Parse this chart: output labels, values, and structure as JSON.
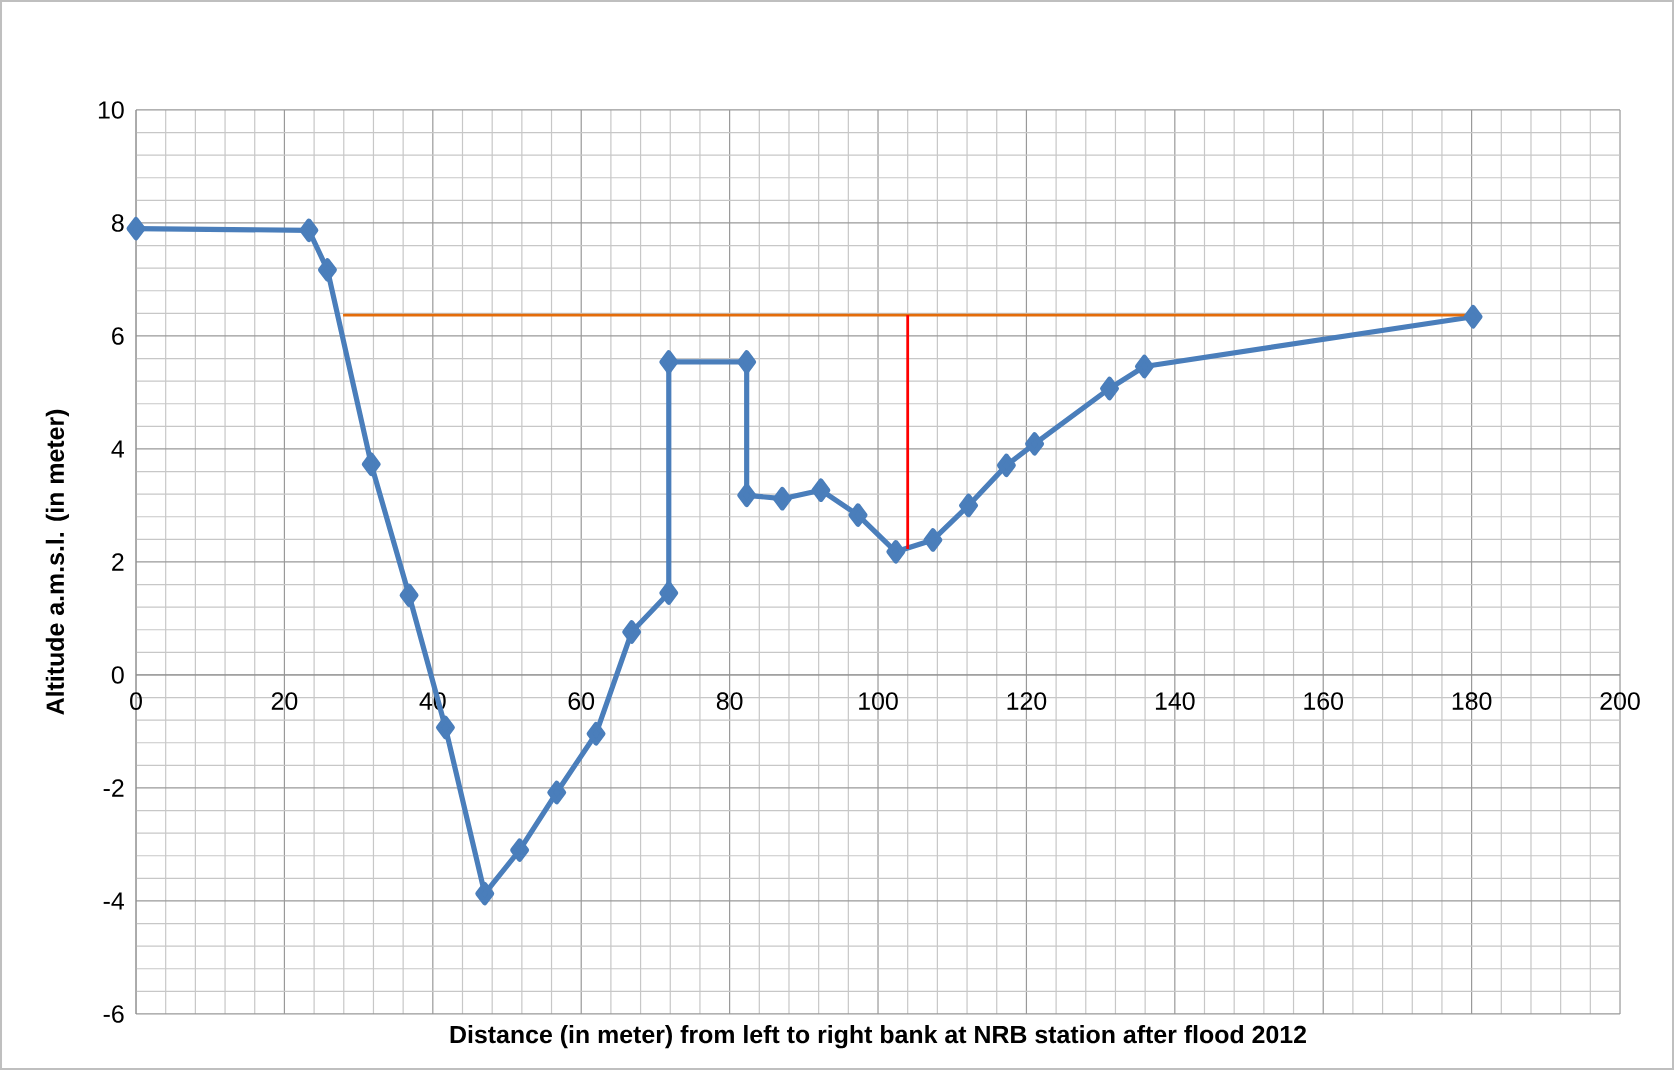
{
  "chart_data": {
    "type": "line",
    "xlabel": "Distance (in meter) from left to right bank at NRB station after flood 2012",
    "ylabel": "Altitude a.m.s.l.  (in meter)",
    "xlim": [
      0,
      200
    ],
    "xticks": [
      0,
      20,
      40,
      60,
      80,
      100,
      120,
      140,
      160,
      180,
      200
    ],
    "ylim": [
      -6,
      10
    ],
    "yticks": [
      -6,
      -4,
      -2,
      0,
      2,
      4,
      6,
      8,
      10
    ],
    "grid": true,
    "marker": "diamond",
    "series": [
      {
        "color": "#4a7ebb",
        "x": [
          0,
          23.3,
          25.8,
          31.7,
          36.8,
          41.7,
          47.0,
          51.7,
          56.7,
          62.0,
          66.8,
          71.8,
          71.8,
          82.3,
          82.3,
          87.1,
          92.3,
          97.3,
          102.4,
          107.4,
          112.2,
          117.3,
          121.1,
          131.2,
          135.9,
          180.2
        ],
        "values": [
          7.9,
          7.87,
          7.17,
          3.73,
          1.41,
          -0.93,
          -3.87,
          -3.1,
          -2.08,
          -1.04,
          0.76,
          1.45,
          5.54,
          5.54,
          3.18,
          3.12,
          3.27,
          2.83,
          2.18,
          2.39,
          3.0,
          3.71,
          4.09,
          5.07,
          5.46,
          6.34
        ]
      },
      {
        "color": "#e46c0a",
        "marker": "none",
        "x": [
          27.9,
          180.2
        ],
        "values": [
          6.37,
          6.37
        ]
      },
      {
        "color": "#ff0000",
        "marker": "none",
        "x": [
          104.0,
          104.0
        ],
        "values": [
          2.23,
          6.37
        ]
      }
    ]
  }
}
